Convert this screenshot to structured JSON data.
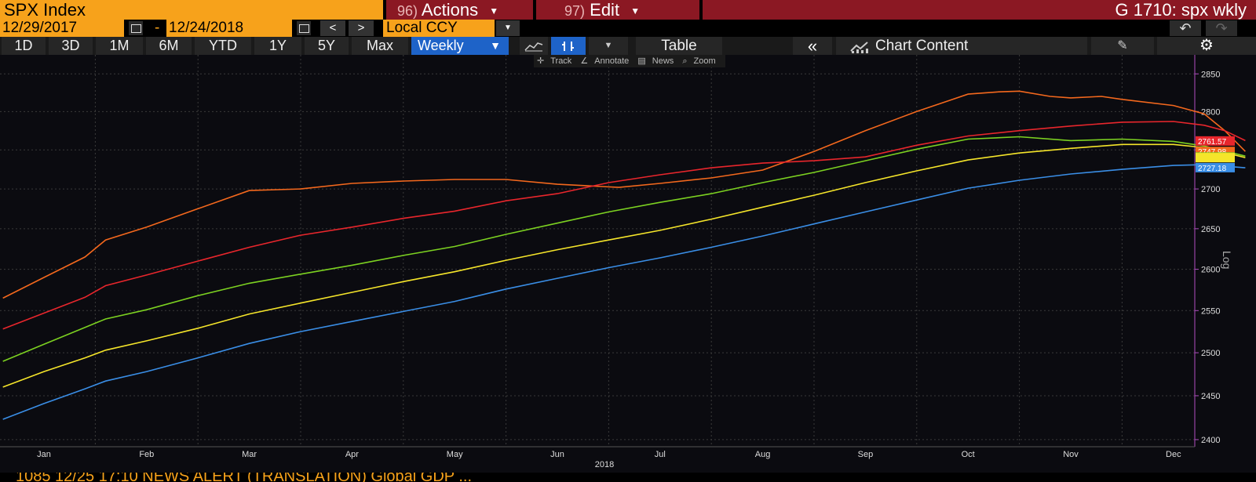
{
  "header": {
    "security": "SPX Index",
    "actions": {
      "num": "96)",
      "label": "Actions"
    },
    "edit": {
      "num": "97)",
      "label": "Edit"
    },
    "page_title": "G 1710: spx wkly"
  },
  "range": {
    "start": "12/29/2017",
    "sep": "-",
    "end": "12/24/2018",
    "prev": "<",
    "next": ">",
    "currency": "Local CCY"
  },
  "periods": [
    "1D",
    "3D",
    "1M",
    "6M",
    "YTD",
    "1Y",
    "5Y",
    "Max"
  ],
  "frequency": "Weekly",
  "toolbar": {
    "table": "Table",
    "chart_content": "Chart Content"
  },
  "chart_tools": [
    "Track",
    "Annotate",
    "News",
    "Zoom"
  ],
  "ticker_tape": "1085 12/25 17:10 NEWS ALERT (TRANSLATION) Global GDP ...",
  "colors": {
    "red": "#e8262c",
    "orange": "#f4681d",
    "green": "#7cd121",
    "yellow": "#f5e52a",
    "blue": "#3a8ee6",
    "accent": "#f7a21b"
  },
  "chart_data": {
    "type": "line",
    "x": [
      "Jan",
      "Feb",
      "Mar",
      "Apr",
      "May",
      "Jun",
      "Jul",
      "Aug",
      "Sep",
      "Oct",
      "Nov",
      "Dec"
    ],
    "xlabel": "2018",
    "ylabel": "Log",
    "yticks": [
      2400,
      2450,
      2500,
      2550,
      2600,
      2650,
      2700,
      2750,
      2800,
      2850
    ],
    "ylim": [
      2392,
      2865
    ],
    "xlim": [
      0,
      11.8
    ],
    "last_values": [
      "2761.57",
      "2747.98",
      "2741.82",
      "2727.18",
      "2740.00"
    ],
    "series": [
      {
        "color": "#f4681d",
        "points": [
          [
            -0.4,
            2565
          ],
          [
            0,
            2590
          ],
          [
            0.4,
            2615
          ],
          [
            0.6,
            2636
          ],
          [
            1,
            2652
          ],
          [
            1.5,
            2675
          ],
          [
            2,
            2698
          ],
          [
            2.5,
            2700
          ],
          [
            3,
            2707
          ],
          [
            3.5,
            2710
          ],
          [
            4,
            2712
          ],
          [
            4.5,
            2712
          ],
          [
            5,
            2706
          ],
          [
            5.3,
            2704
          ],
          [
            5.6,
            2702
          ],
          [
            6,
            2707
          ],
          [
            6.5,
            2714
          ],
          [
            7,
            2724
          ],
          [
            7.5,
            2748
          ],
          [
            8,
            2775
          ],
          [
            8.5,
            2800
          ],
          [
            9,
            2823
          ],
          [
            9.3,
            2826
          ],
          [
            9.5,
            2827
          ],
          [
            9.8,
            2820
          ],
          [
            10,
            2818
          ],
          [
            10.3,
            2820
          ],
          [
            10.5,
            2816
          ],
          [
            11,
            2808
          ],
          [
            11.3,
            2797
          ],
          [
            11.5,
            2775
          ],
          [
            11.7,
            2748
          ]
        ]
      },
      {
        "color": "#e8262c",
        "points": [
          [
            -0.4,
            2528
          ],
          [
            0,
            2547
          ],
          [
            0.4,
            2566
          ],
          [
            0.6,
            2580
          ],
          [
            1,
            2593
          ],
          [
            1.5,
            2610
          ],
          [
            2,
            2627
          ],
          [
            2.5,
            2642
          ],
          [
            3,
            2652
          ],
          [
            3.5,
            2663
          ],
          [
            4,
            2672
          ],
          [
            4.5,
            2685
          ],
          [
            5,
            2694
          ],
          [
            5.5,
            2708
          ],
          [
            6,
            2718
          ],
          [
            6.5,
            2727
          ],
          [
            7,
            2733
          ],
          [
            7.5,
            2736
          ],
          [
            8,
            2741
          ],
          [
            8.5,
            2756
          ],
          [
            9,
            2768
          ],
          [
            9.5,
            2775
          ],
          [
            10,
            2781
          ],
          [
            10.5,
            2786
          ],
          [
            11,
            2787
          ],
          [
            11.3,
            2782
          ],
          [
            11.5,
            2775
          ],
          [
            11.7,
            2762
          ]
        ]
      },
      {
        "color": "#7cd121",
        "points": [
          [
            -0.4,
            2490
          ],
          [
            0,
            2510
          ],
          [
            0.4,
            2530
          ],
          [
            0.6,
            2540
          ],
          [
            1,
            2551
          ],
          [
            1.5,
            2568
          ],
          [
            2,
            2583
          ],
          [
            2.5,
            2594
          ],
          [
            3,
            2605
          ],
          [
            3.5,
            2617
          ],
          [
            4,
            2628
          ],
          [
            4.5,
            2643
          ],
          [
            5,
            2657
          ],
          [
            5.5,
            2671
          ],
          [
            6,
            2683
          ],
          [
            6.5,
            2694
          ],
          [
            7,
            2708
          ],
          [
            7.5,
            2721
          ],
          [
            8,
            2736
          ],
          [
            8.5,
            2751
          ],
          [
            9,
            2764
          ],
          [
            9.5,
            2767
          ],
          [
            10,
            2762
          ],
          [
            10.5,
            2764
          ],
          [
            11,
            2761
          ],
          [
            11.3,
            2755
          ],
          [
            11.7,
            2742
          ]
        ]
      },
      {
        "color": "#f5e52a",
        "points": [
          [
            -0.4,
            2460
          ],
          [
            0,
            2478
          ],
          [
            0.4,
            2494
          ],
          [
            0.6,
            2503
          ],
          [
            1,
            2514
          ],
          [
            1.5,
            2529
          ],
          [
            2,
            2546
          ],
          [
            2.5,
            2559
          ],
          [
            3,
            2572
          ],
          [
            3.5,
            2585
          ],
          [
            4,
            2597
          ],
          [
            4.5,
            2611
          ],
          [
            5,
            2624
          ],
          [
            5.5,
            2636
          ],
          [
            6,
            2648
          ],
          [
            6.5,
            2662
          ],
          [
            7,
            2677
          ],
          [
            7.5,
            2692
          ],
          [
            8,
            2708
          ],
          [
            8.5,
            2723
          ],
          [
            9,
            2737
          ],
          [
            9.5,
            2746
          ],
          [
            10,
            2752
          ],
          [
            10.5,
            2757
          ],
          [
            11,
            2757
          ],
          [
            11.3,
            2753
          ],
          [
            11.7,
            2740
          ]
        ]
      },
      {
        "color": "#3a8ee6",
        "points": [
          [
            -0.4,
            2423
          ],
          [
            0,
            2441
          ],
          [
            0.4,
            2458
          ],
          [
            0.6,
            2467
          ],
          [
            1,
            2478
          ],
          [
            1.5,
            2494
          ],
          [
            2,
            2511
          ],
          [
            2.5,
            2525
          ],
          [
            3,
            2537
          ],
          [
            3.5,
            2549
          ],
          [
            4,
            2561
          ],
          [
            4.5,
            2576
          ],
          [
            5,
            2589
          ],
          [
            5.5,
            2602
          ],
          [
            6,
            2614
          ],
          [
            6.5,
            2627
          ],
          [
            7,
            2641
          ],
          [
            7.5,
            2656
          ],
          [
            8,
            2671
          ],
          [
            8.5,
            2686
          ],
          [
            9,
            2701
          ],
          [
            9.5,
            2711
          ],
          [
            10,
            2719
          ],
          [
            10.5,
            2725
          ],
          [
            11,
            2730
          ],
          [
            11.3,
            2731
          ],
          [
            11.7,
            2727
          ]
        ]
      }
    ]
  }
}
